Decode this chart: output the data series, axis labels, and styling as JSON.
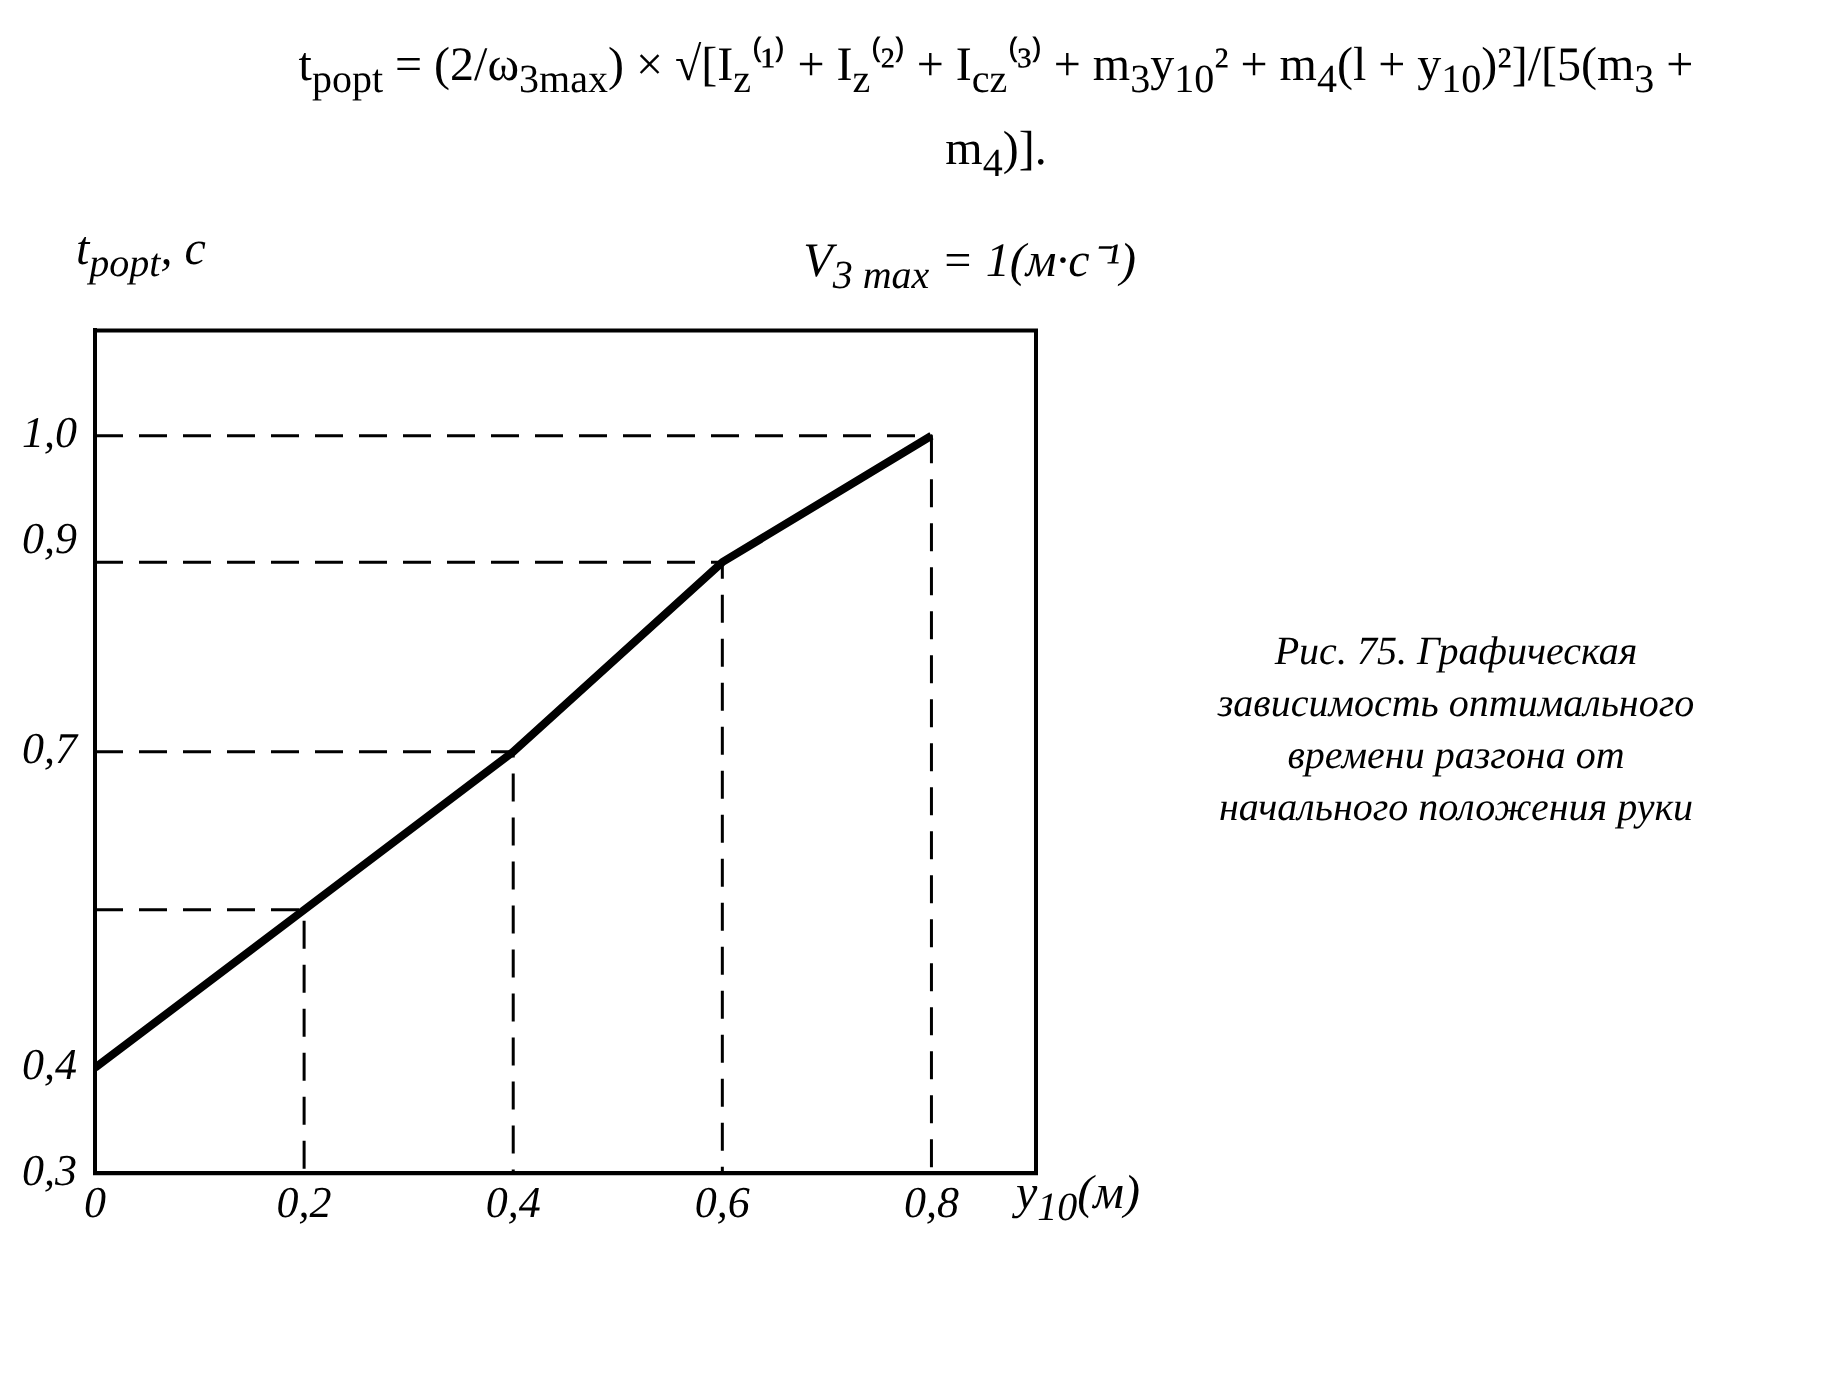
{
  "chart_data": {
    "type": "line",
    "title": "V$_{3 max}$ = 1(м·с⁻¹)",
    "xlabel": "y$_{10}$(м)",
    "ylabel": "t$_{popt}$, с",
    "x": [
      0,
      0.2,
      0.4,
      0.6,
      0.8
    ],
    "series": [
      {
        "color": "#000000",
        "values": [
          0.4,
          0.55,
          0.7,
          0.88,
          1.0
        ]
      },
      {
        "color": "#000000",
        "line_style": "dashed",
        "x": [
          0,
          0.2,
          0.2
        ],
        "values": [
          0.55,
          0.55,
          0.3
        ]
      },
      {
        "color": "#000000",
        "line_style": "dashed",
        "x": [
          0,
          0.4,
          0.4
        ],
        "values": [
          0.7,
          0.7,
          0.3
        ]
      },
      {
        "color": "#000000",
        "line_style": "dashed",
        "x": [
          0,
          0.6,
          0.6
        ],
        "values": [
          0.88,
          0.88,
          0.3
        ]
      },
      {
        "color": "#000000",
        "line_style": "dashed",
        "x": [
          0,
          0.8,
          0.8
        ],
        "values": [
          1.0,
          1.0,
          0.3
        ]
      }
    ],
    "xlim": [
      0,
      0.9
    ],
    "xticks": [
      0,
      {
        "value": 0.2,
        "label": "0,2"
      },
      {
        "value": 0.4,
        "label": "0,4"
      },
      {
        "value": 0.6,
        "label": "0,6"
      },
      {
        "value": 0.8,
        "label": "0,8"
      }
    ],
    "ylim": [
      0.3,
      1.1
    ],
    "yticks": [
      {
        "value": 0.3,
        "label": "0,3"
      },
      {
        "value": 0.4,
        "label": "0,4"
      },
      {
        "value": 0.7,
        "label": "0,7"
      },
      {
        "value": 0.9,
        "label": "0,9"
      },
      {
        "value": 1.0,
        "label": "1,0"
      }
    ],
    "grid": false,
    "legend": false,
    "marker": "none",
    "line_style": "solid",
    "annotations": [
      "t$_{popt}$ = (2/ω$_{3max}$) × √[I$_{z}$⁽¹⁾ + I$_{z}$⁽²⁾ + I$_{cz}$⁽³⁾ + m$_{3}$y$_{10}$² + m$_{4}$(l + y$_{10}$)²]/[5(m$_{3}$ + m$_{4}$)].",
      "Рис. 75. Графическая зависимость оптимального времени разгона от начального положения руки"
    ]
  }
}
